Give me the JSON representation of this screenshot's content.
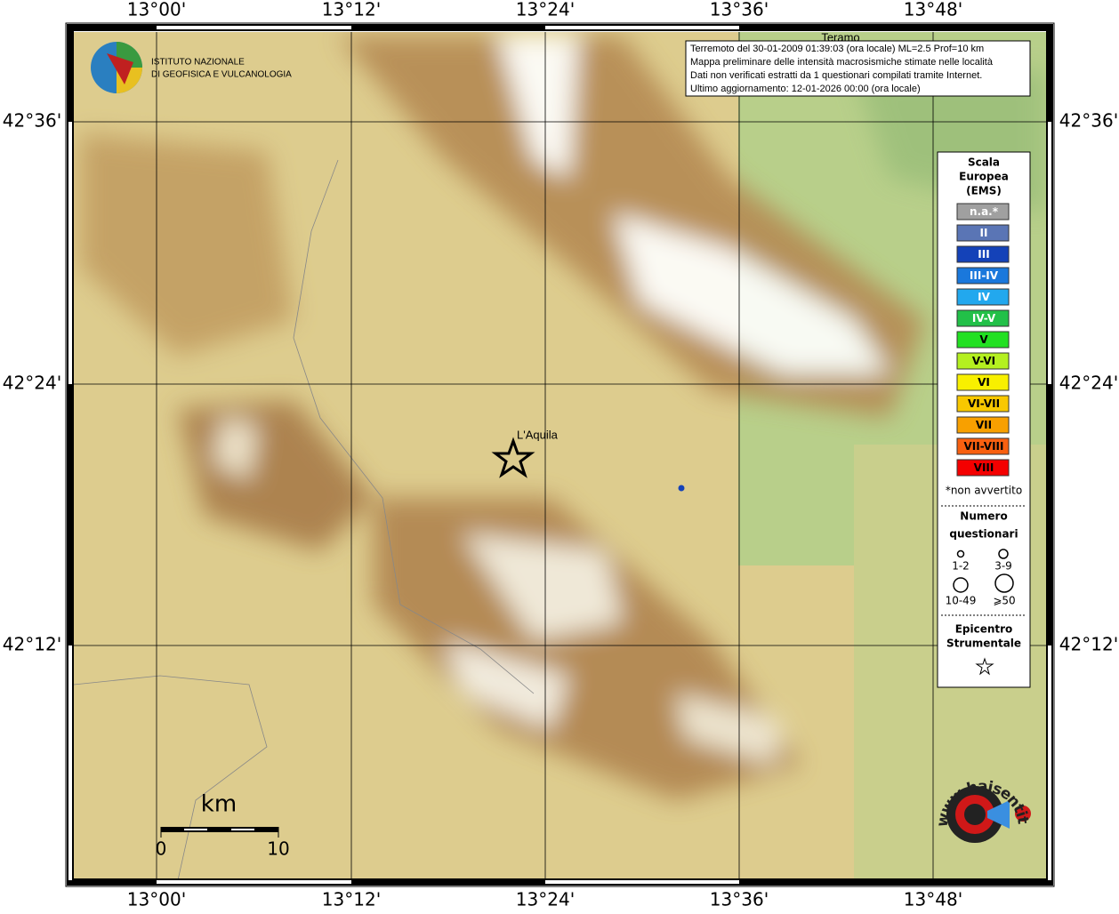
{
  "map": {
    "lon_labels": [
      "13°00'",
      "13°12'",
      "13°24'",
      "13°36'",
      "13°48'"
    ],
    "lat_labels": [
      "42°36'",
      "42°24'",
      "42°12'"
    ],
    "places": [
      "Teramo",
      "L'Aquila"
    ],
    "info": [
      "Terremoto del 30-01-2009 01:39:03 (ora locale) ML=2.5 Prof=10 km",
      "Mappa preliminare delle intensità macrosismiche stimate nelle località",
      "Dati non verificati estratti da 1 questionari compilati tramite Internet.",
      "Ultimo aggiornamento: 12-01-2026 00:00 (ora locale)"
    ],
    "logo": [
      "ISTITUTO NAZIONALE",
      "DI GEOFISICA E VULCANOLOGIA"
    ],
    "scale": {
      "unit": "km",
      "labels": [
        "0",
        "10"
      ]
    },
    "site": "www.haisentitoilterremoto.it",
    "legend": {
      "title": [
        "Scala",
        "Europea",
        "(EMS)"
      ],
      "items": [
        {
          "label": "n.a.*",
          "color": "#a0a0a0"
        },
        {
          "label": "II",
          "color": "#5a75b5"
        },
        {
          "label": "III",
          "color": "#1442b8"
        },
        {
          "label": "III-IV",
          "color": "#1a78dc"
        },
        {
          "label": "IV",
          "color": "#22a8ee"
        },
        {
          "label": "IV-V",
          "color": "#22c048"
        },
        {
          "label": "V",
          "color": "#22e022"
        },
        {
          "label": "V-VI",
          "color": "#b4f020"
        },
        {
          "label": "VI",
          "color": "#f8f000"
        },
        {
          "label": "VI-VII",
          "color": "#f8c800"
        },
        {
          "label": "VII",
          "color": "#f8a000"
        },
        {
          "label": "VII-VIII",
          "color": "#f86010"
        },
        {
          "label": "VIII",
          "color": "#f40000"
        }
      ],
      "note": "*non avvertito",
      "count_title": [
        "Numero",
        "questionari"
      ],
      "counts": [
        "1-2",
        "3-9",
        "10-49",
        "⩾50"
      ],
      "epi_title": [
        "Epicentro",
        "Strumentale"
      ]
    }
  }
}
